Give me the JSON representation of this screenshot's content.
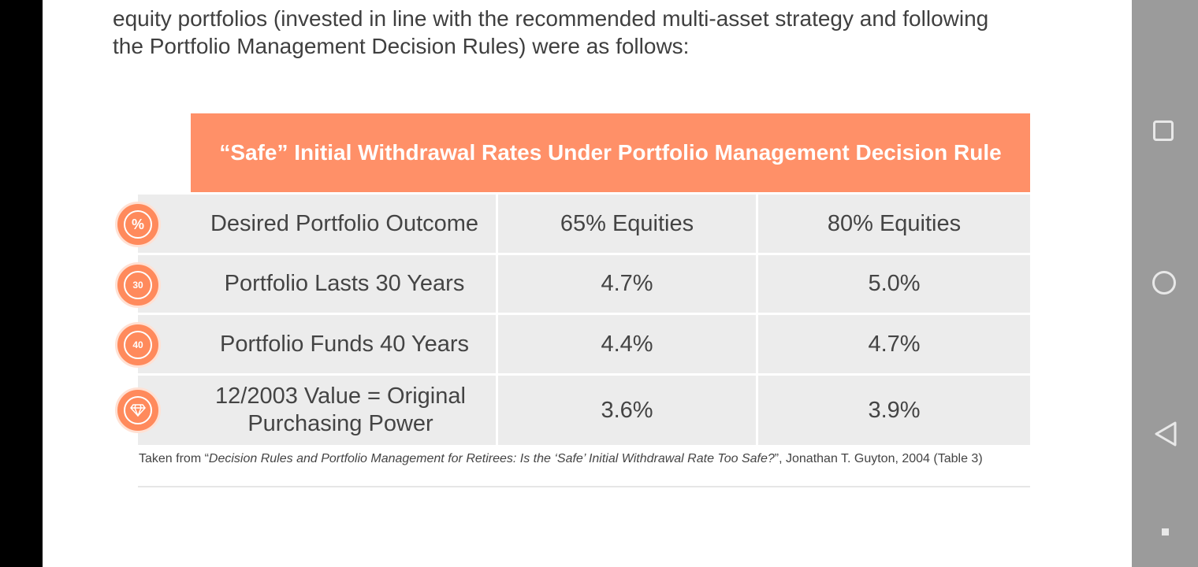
{
  "intro": {
    "line1": "equity portfolios (invested in line with the recommended multi-asset strategy and following",
    "line2": "the Portfolio Management Decision Rules) were as follows:"
  },
  "table": {
    "title": "“Safe” Initial Withdrawal Rates Under Portfolio Management Decision Rule",
    "header": [
      "Desired Portfolio Outcome",
      "65% Equities",
      "80% Equities"
    ],
    "rows": [
      {
        "label": "Portfolio Lasts 30 Years",
        "eq65": "4.7%",
        "eq80": "5.0%",
        "badge": "30"
      },
      {
        "label": "Portfolio Funds 40 Years",
        "eq65": "4.4%",
        "eq80": "4.7%",
        "badge": "40"
      },
      {
        "label": "12/2003 Value = Original Purchasing Power",
        "eq65": "3.6%",
        "eq80": "3.9%",
        "badge": "diamond"
      }
    ],
    "header_badge": "%"
  },
  "source": {
    "prefix": "Taken from “",
    "title": "Decision Rules and Portfolio Management for Retirees: Is the ‘Safe’ Initial Withdrawal Rate Too Safe?",
    "suffix": "”, Jonathan T. Guyton, 2004 (Table 3)"
  },
  "colors": {
    "accent": "#ff9068",
    "cell_bg": "#ececec",
    "nav_bg": "#9b9b9b"
  },
  "navbar": {
    "icons": [
      "recent-apps-icon",
      "home-icon",
      "back-icon",
      "menu-dot-icon"
    ]
  }
}
